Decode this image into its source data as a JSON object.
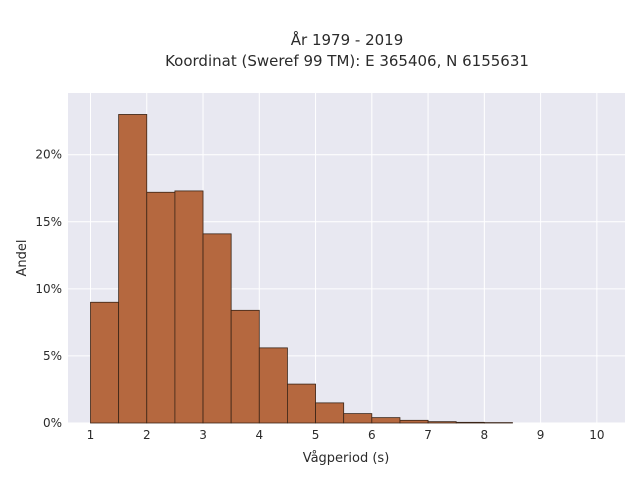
{
  "chart_data": {
    "type": "bar",
    "title_line1": "År 1979 - 2019",
    "title_line2": "Koordinat (Sweref 99 TM): E 365406, N 6155631",
    "xlabel": "Vågperiod (s)",
    "ylabel": "Andel",
    "x_ticks": [
      "1",
      "2",
      "3",
      "4",
      "5",
      "6",
      "7",
      "8",
      "9",
      "10"
    ],
    "y_ticks": [
      "0%",
      "5%",
      "10%",
      "15%",
      "20%"
    ],
    "xlim": [
      0.6,
      10.5
    ],
    "ylim": [
      0,
      24.6
    ],
    "grid": true,
    "bin_width": 0.5,
    "bins": [
      {
        "x0": 1.0,
        "x1": 1.5,
        "value": 9.0
      },
      {
        "x0": 1.5,
        "x1": 2.0,
        "value": 23.0
      },
      {
        "x0": 2.0,
        "x1": 2.5,
        "value": 17.2
      },
      {
        "x0": 2.5,
        "x1": 3.0,
        "value": 17.3
      },
      {
        "x0": 3.0,
        "x1": 3.5,
        "value": 14.1
      },
      {
        "x0": 3.5,
        "x1": 4.0,
        "value": 8.4
      },
      {
        "x0": 4.0,
        "x1": 4.5,
        "value": 5.6
      },
      {
        "x0": 4.5,
        "x1": 5.0,
        "value": 2.9
      },
      {
        "x0": 5.0,
        "x1": 5.5,
        "value": 1.5
      },
      {
        "x0": 5.5,
        "x1": 6.0,
        "value": 0.7
      },
      {
        "x0": 6.0,
        "x1": 6.5,
        "value": 0.4
      },
      {
        "x0": 6.5,
        "x1": 7.0,
        "value": 0.2
      },
      {
        "x0": 7.0,
        "x1": 7.5,
        "value": 0.1
      },
      {
        "x0": 7.5,
        "x1": 8.0,
        "value": 0.05
      },
      {
        "x0": 8.0,
        "x1": 8.5,
        "value": 0.03
      }
    ],
    "colors": {
      "bar_fill": "#b5683f",
      "bar_edge": "#3a2416",
      "plot_bg": "#e8e8f1",
      "grid": "#ffffff"
    }
  }
}
